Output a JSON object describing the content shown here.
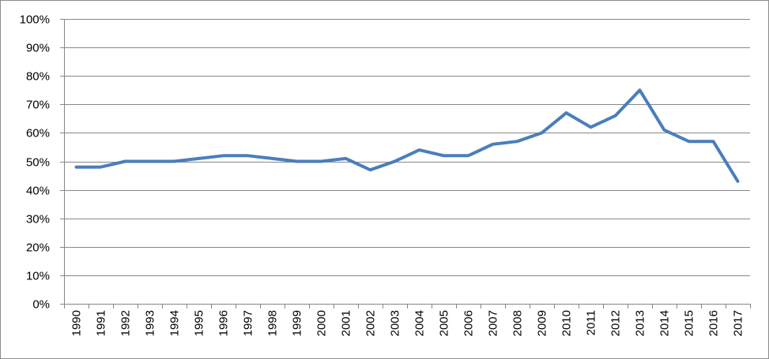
{
  "chart_data": {
    "type": "line",
    "title": "",
    "xlabel": "",
    "ylabel": "",
    "x": [
      "1990",
      "1991",
      "1992",
      "1993",
      "1994",
      "1995",
      "1996",
      "1997",
      "1998",
      "1999",
      "2000",
      "2001",
      "2002",
      "2003",
      "2004",
      "2005",
      "2006",
      "2007",
      "2008",
      "2009",
      "2010",
      "2011",
      "2012",
      "2013",
      "2014",
      "2015",
      "2016",
      "2017"
    ],
    "series": [
      {
        "values": [
          48,
          48,
          50,
          50,
          50,
          51,
          52,
          52,
          51,
          50,
          50,
          51,
          47,
          50,
          54,
          52,
          52,
          56,
          57,
          60,
          67,
          62,
          66,
          75,
          61,
          57,
          57,
          43
        ],
        "color": "#4a7ebb"
      }
    ],
    "ylim": [
      0,
      100
    ],
    "yticks": [
      "0%",
      "10%",
      "20%",
      "30%",
      "40%",
      "50%",
      "60%",
      "70%",
      "80%",
      "90%",
      "100%"
    ],
    "grid": true,
    "legend": "none"
  }
}
